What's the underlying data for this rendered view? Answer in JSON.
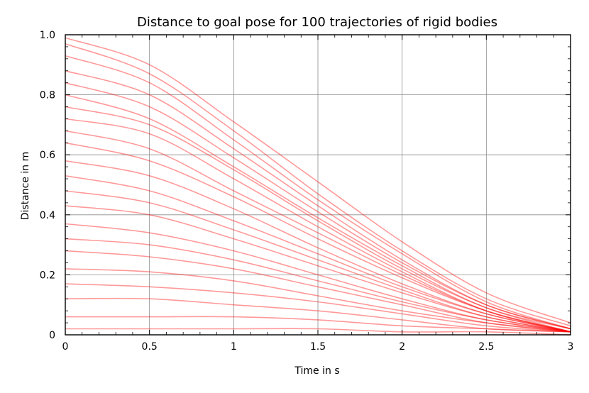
{
  "chart_data": {
    "type": "line",
    "title": "Distance to goal pose for 100 trajectories of rigid bodies",
    "xlabel": "Time in s",
    "ylabel": "Distance in m",
    "xlim": [
      0,
      3
    ],
    "ylim": [
      0,
      1.0
    ],
    "xticks": [
      0,
      0.5,
      1,
      1.5,
      2,
      2.5,
      3
    ],
    "xtick_labels": [
      "0",
      "0.5",
      "1",
      "1.5",
      "2",
      "2.5",
      "3"
    ],
    "yticks": [
      0,
      0.2,
      0.4,
      0.6,
      0.8,
      1.0
    ],
    "ytick_labels": [
      "0",
      "0.2",
      "0.4",
      "0.6",
      "0.8",
      "1.0"
    ],
    "grid": true,
    "line_color": "#ff0000",
    "line_opacity": 0.25,
    "series_count": 100,
    "final_distance_range": [
      0.0,
      0.06
    ],
    "series": [
      {
        "x": [
          0,
          0.5,
          1,
          1.5,
          2,
          2.5,
          3
        ],
        "values": [
          0.99,
          0.9,
          0.71,
          0.51,
          0.31,
          0.14,
          0.04
        ]
      },
      {
        "x": [
          0,
          0.5,
          1,
          1.5,
          2,
          2.5,
          3
        ],
        "values": [
          0.97,
          0.87,
          0.68,
          0.47,
          0.28,
          0.12,
          0.03
        ]
      },
      {
        "x": [
          0,
          0.5,
          1,
          1.5,
          2,
          2.5,
          3
        ],
        "values": [
          0.93,
          0.84,
          0.65,
          0.45,
          0.27,
          0.11,
          0.02
        ]
      },
      {
        "x": [
          0,
          0.5,
          1,
          1.5,
          2,
          2.5,
          3
        ],
        "values": [
          0.88,
          0.8,
          0.62,
          0.43,
          0.25,
          0.1,
          0.02
        ]
      },
      {
        "x": [
          0,
          0.5,
          1,
          1.5,
          2,
          2.5,
          3
        ],
        "values": [
          0.84,
          0.76,
          0.59,
          0.41,
          0.24,
          0.1,
          0.02
        ]
      },
      {
        "x": [
          0,
          0.5,
          1,
          1.5,
          2,
          2.5,
          3
        ],
        "values": [
          0.8,
          0.72,
          0.56,
          0.39,
          0.23,
          0.09,
          0.02
        ]
      },
      {
        "x": [
          0,
          0.5,
          1,
          1.5,
          2,
          2.5,
          3
        ],
        "values": [
          0.76,
          0.7,
          0.55,
          0.38,
          0.22,
          0.09,
          0.01
        ]
      },
      {
        "x": [
          0,
          0.5,
          1,
          1.5,
          2,
          2.5,
          3
        ],
        "values": [
          0.72,
          0.67,
          0.52,
          0.36,
          0.21,
          0.08,
          0.01
        ]
      },
      {
        "x": [
          0,
          0.5,
          1,
          1.5,
          2,
          2.5,
          3
        ],
        "values": [
          0.68,
          0.62,
          0.48,
          0.34,
          0.2,
          0.08,
          0.01
        ]
      },
      {
        "x": [
          0,
          0.5,
          1,
          1.5,
          2,
          2.5,
          3
        ],
        "values": [
          0.64,
          0.58,
          0.46,
          0.32,
          0.19,
          0.08,
          0.01
        ]
      },
      {
        "x": [
          0,
          0.5,
          1,
          1.5,
          2,
          2.5,
          3
        ],
        "values": [
          0.58,
          0.53,
          0.42,
          0.29,
          0.17,
          0.07,
          0.01
        ]
      },
      {
        "x": [
          0,
          0.5,
          1,
          1.5,
          2,
          2.5,
          3
        ],
        "values": [
          0.53,
          0.48,
          0.38,
          0.27,
          0.16,
          0.07,
          0.01
        ]
      },
      {
        "x": [
          0,
          0.5,
          1,
          1.5,
          2,
          2.5,
          3
        ],
        "values": [
          0.48,
          0.44,
          0.35,
          0.25,
          0.15,
          0.06,
          0.01
        ]
      },
      {
        "x": [
          0,
          0.5,
          1,
          1.5,
          2,
          2.5,
          3
        ],
        "values": [
          0.43,
          0.4,
          0.32,
          0.23,
          0.14,
          0.06,
          0.01
        ]
      },
      {
        "x": [
          0,
          0.5,
          1,
          1.5,
          2,
          2.5,
          3
        ],
        "values": [
          0.37,
          0.34,
          0.28,
          0.2,
          0.12,
          0.05,
          0.01
        ]
      },
      {
        "x": [
          0,
          0.5,
          1,
          1.5,
          2,
          2.5,
          3
        ],
        "values": [
          0.32,
          0.3,
          0.25,
          0.18,
          0.11,
          0.05,
          0.01
        ]
      },
      {
        "x": [
          0,
          0.5,
          1,
          1.5,
          2,
          2.5,
          3
        ],
        "values": [
          0.28,
          0.26,
          0.22,
          0.16,
          0.1,
          0.04,
          0.01
        ]
      },
      {
        "x": [
          0,
          0.5,
          1,
          1.5,
          2,
          2.5,
          3
        ],
        "values": [
          0.22,
          0.21,
          0.18,
          0.13,
          0.08,
          0.04,
          0.01
        ]
      },
      {
        "x": [
          0,
          0.5,
          1,
          1.5,
          2,
          2.5,
          3
        ],
        "values": [
          0.17,
          0.16,
          0.14,
          0.11,
          0.07,
          0.03,
          0.01
        ]
      },
      {
        "x": [
          0,
          0.5,
          1,
          1.5,
          2,
          2.5,
          3
        ],
        "values": [
          0.12,
          0.12,
          0.1,
          0.08,
          0.05,
          0.02,
          0.01
        ]
      },
      {
        "x": [
          0,
          0.5,
          1,
          1.5,
          2,
          2.5,
          3
        ],
        "values": [
          0.06,
          0.06,
          0.06,
          0.05,
          0.03,
          0.02,
          0.01
        ]
      },
      {
        "x": [
          0,
          0.5,
          1,
          1.5,
          2,
          2.5,
          3
        ],
        "values": [
          0.02,
          0.02,
          0.02,
          0.02,
          0.01,
          0.01,
          0.0
        ]
      }
    ]
  }
}
